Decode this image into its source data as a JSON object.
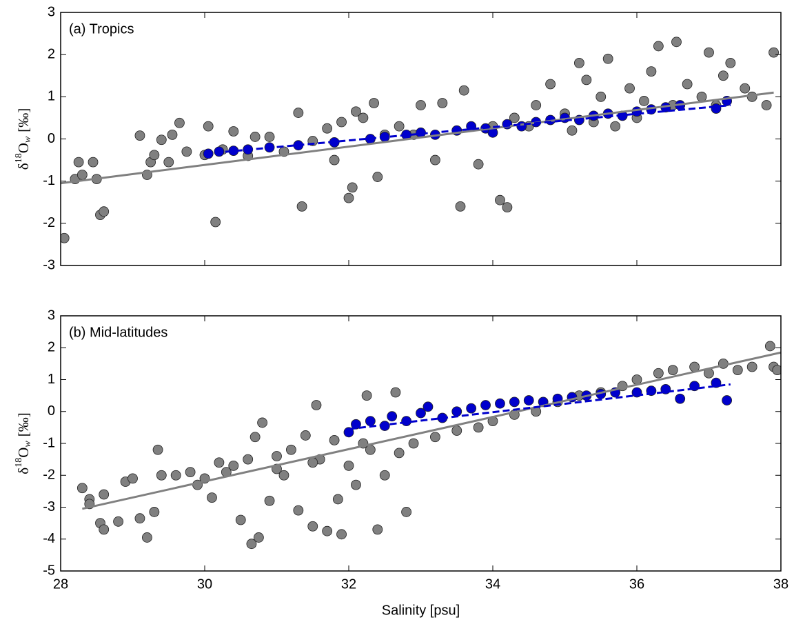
{
  "chart_data": [
    {
      "type": "scatter",
      "annotation": "(a) Tropics",
      "ylabel": {
        "base": "δ",
        "sup": "18",
        "mid": "O",
        "sub": "w",
        "unit": "[‰]"
      },
      "xlim": [
        28,
        38
      ],
      "xticks": [
        28,
        30,
        32,
        34,
        36,
        38
      ],
      "xticklabels": false,
      "ylim": [
        -3,
        3
      ],
      "yticks": [
        -3,
        -2,
        -1,
        0,
        1,
        2,
        3
      ],
      "series": [
        {
          "mode": "markers",
          "color": "#808080",
          "x": [
            28.05,
            28.2,
            28.25,
            28.3,
            28.45,
            28.5,
            28.55,
            28.6,
            29.1,
            29.2,
            29.25,
            29.3,
            29.4,
            29.5,
            29.55,
            29.65,
            29.75,
            30.0,
            30.05,
            30.15,
            30.25,
            30.4,
            30.6,
            30.7,
            30.9,
            31.1,
            31.3,
            31.35,
            31.5,
            31.7,
            31.8,
            31.9,
            32.0,
            32.05,
            32.1,
            32.2,
            32.35,
            32.4,
            32.5,
            32.7,
            32.9,
            33.0,
            33.2,
            33.3,
            33.5,
            33.55,
            33.6,
            33.8,
            34.0,
            34.1,
            34.2,
            34.3,
            34.5,
            34.6,
            34.8,
            35.0,
            35.1,
            35.2,
            35.3,
            35.4,
            35.5,
            35.6,
            35.7,
            35.9,
            36.0,
            36.1,
            36.2,
            36.3,
            36.5,
            36.55,
            36.7,
            36.9,
            37.0,
            37.1,
            37.2,
            37.3,
            37.5,
            37.6,
            37.9,
            37.8
          ],
          "values": [
            -2.35,
            -0.95,
            -0.55,
            -0.85,
            -0.55,
            -0.95,
            -1.8,
            -1.72,
            0.08,
            -0.85,
            -0.55,
            -0.38,
            -0.02,
            -0.55,
            0.1,
            0.38,
            -0.3,
            -0.38,
            0.3,
            -1.97,
            -0.25,
            0.18,
            -0.4,
            0.05,
            0.05,
            -0.3,
            0.62,
            -1.6,
            -0.05,
            0.25,
            -0.5,
            0.4,
            -1.4,
            -1.15,
            0.65,
            0.5,
            0.85,
            -0.9,
            0.1,
            0.3,
            0.1,
            0.8,
            -0.5,
            0.85,
            0.2,
            -1.6,
            1.15,
            -0.6,
            0.3,
            -1.45,
            -1.62,
            0.5,
            0.3,
            0.8,
            1.3,
            0.6,
            0.2,
            1.8,
            1.4,
            0.4,
            1.0,
            1.9,
            0.3,
            1.2,
            0.5,
            0.9,
            1.6,
            2.2,
            0.8,
            2.3,
            1.3,
            1.0,
            2.05,
            0.8,
            1.5,
            1.8,
            1.2,
            1.0,
            2.05,
            0.8
          ]
        },
        {
          "mode": "markers",
          "color": "#0000cc",
          "x": [
            30.05,
            30.2,
            30.4,
            30.6,
            30.9,
            31.3,
            31.8,
            32.3,
            32.5,
            32.8,
            33.0,
            33.2,
            33.5,
            33.7,
            33.9,
            34.0,
            34.2,
            34.4,
            34.6,
            34.8,
            35.0,
            35.2,
            35.4,
            35.6,
            35.8,
            36.0,
            36.2,
            36.4,
            36.6,
            37.1,
            37.25
          ],
          "values": [
            -0.35,
            -0.3,
            -0.28,
            -0.25,
            -0.2,
            -0.15,
            -0.08,
            0.0,
            0.05,
            0.1,
            0.15,
            0.1,
            0.2,
            0.3,
            0.25,
            0.15,
            0.35,
            0.3,
            0.4,
            0.45,
            0.5,
            0.45,
            0.55,
            0.6,
            0.55,
            0.65,
            0.7,
            0.75,
            0.8,
            0.72,
            0.9
          ]
        },
        {
          "mode": "line",
          "color": "#808080",
          "x": [
            28,
            37.9
          ],
          "values": [
            -1.05,
            1.1
          ]
        },
        {
          "mode": "dashed",
          "color": "#0000cc",
          "x": [
            30.0,
            37.3
          ],
          "values": [
            -0.35,
            0.8
          ]
        }
      ]
    },
    {
      "type": "scatter",
      "annotation": "(b) Mid-latitudes",
      "xlabel": "Salinity [psu]",
      "ylabel": {
        "base": "δ",
        "sup": "18",
        "mid": "O",
        "sub": "w",
        "unit": "[‰]"
      },
      "xlim": [
        28,
        38
      ],
      "xticks": [
        28,
        30,
        32,
        34,
        36,
        38
      ],
      "xticklabels": true,
      "ylim": [
        -5,
        3
      ],
      "yticks": [
        -5,
        -4,
        -3,
        -2,
        -1,
        0,
        1,
        2,
        3
      ],
      "series": [
        {
          "mode": "markers",
          "color": "#808080",
          "x": [
            28.3,
            28.4,
            28.4,
            28.6,
            28.55,
            28.6,
            28.8,
            28.9,
            29.0,
            29.1,
            29.2,
            29.3,
            29.35,
            29.4,
            29.6,
            29.8,
            30.0,
            30.1,
            30.2,
            30.4,
            30.5,
            30.6,
            30.65,
            30.75,
            30.8,
            30.7,
            30.9,
            31.0,
            31.1,
            31.2,
            31.3,
            31.4,
            31.5,
            31.55,
            31.6,
            31.7,
            31.8,
            31.85,
            31.9,
            32.0,
            32.1,
            32.25,
            32.3,
            32.4,
            32.5,
            32.65,
            32.8,
            32.9,
            33.2,
            33.5,
            33.8,
            34.0,
            34.3,
            34.6,
            34.9,
            35.2,
            35.5,
            35.8,
            36.0,
            36.3,
            36.5,
            36.8,
            37.0,
            37.2,
            37.4,
            37.6,
            37.85,
            37.9,
            37.95,
            31.0,
            30.3,
            29.9,
            31.5,
            32.2,
            32.7
          ],
          "values": [
            -2.4,
            -2.75,
            -2.9,
            -2.6,
            -3.5,
            -3.7,
            -3.45,
            -2.2,
            -2.1,
            -3.35,
            -3.95,
            -3.15,
            -1.2,
            -2.0,
            -2.0,
            -1.9,
            -2.1,
            -2.7,
            -1.6,
            -1.7,
            -3.4,
            -1.5,
            -4.15,
            -3.95,
            -0.35,
            -0.8,
            -2.8,
            -1.4,
            -2.0,
            -1.2,
            -3.1,
            -0.75,
            -3.6,
            0.2,
            -1.5,
            -3.75,
            -0.9,
            -2.75,
            -3.85,
            -1.7,
            -2.3,
            0.5,
            -1.2,
            -3.7,
            -2.0,
            0.6,
            -3.15,
            -1.0,
            -0.8,
            -0.6,
            -0.5,
            -0.3,
            -0.1,
            0.0,
            0.3,
            0.5,
            0.6,
            0.8,
            1.0,
            1.2,
            1.3,
            1.4,
            1.2,
            1.5,
            1.3,
            1.4,
            2.05,
            1.4,
            1.3,
            -1.8,
            -1.9,
            -2.3,
            -1.6,
            -1.0,
            -1.3
          ]
        },
        {
          "mode": "markers",
          "color": "#0000cc",
          "x": [
            32.0,
            32.1,
            32.3,
            32.5,
            32.6,
            32.8,
            33.0,
            33.1,
            33.3,
            33.5,
            33.7,
            33.9,
            34.1,
            34.3,
            34.5,
            34.7,
            34.9,
            35.1,
            35.3,
            35.5,
            35.7,
            36.0,
            36.2,
            36.4,
            36.6,
            36.8,
            37.1,
            37.25
          ],
          "values": [
            -0.65,
            -0.4,
            -0.3,
            -0.45,
            -0.15,
            -0.3,
            -0.05,
            0.15,
            -0.2,
            0.0,
            0.1,
            0.2,
            0.25,
            0.3,
            0.35,
            0.3,
            0.4,
            0.45,
            0.5,
            0.55,
            0.6,
            0.6,
            0.65,
            0.7,
            0.4,
            0.8,
            0.9,
            0.35
          ]
        },
        {
          "mode": "line",
          "color": "#808080",
          "x": [
            28.3,
            38
          ],
          "values": [
            -3.05,
            1.85
          ]
        },
        {
          "mode": "dashed",
          "color": "#0000cc",
          "x": [
            32.0,
            37.3
          ],
          "values": [
            -0.55,
            0.85
          ]
        }
      ]
    }
  ]
}
